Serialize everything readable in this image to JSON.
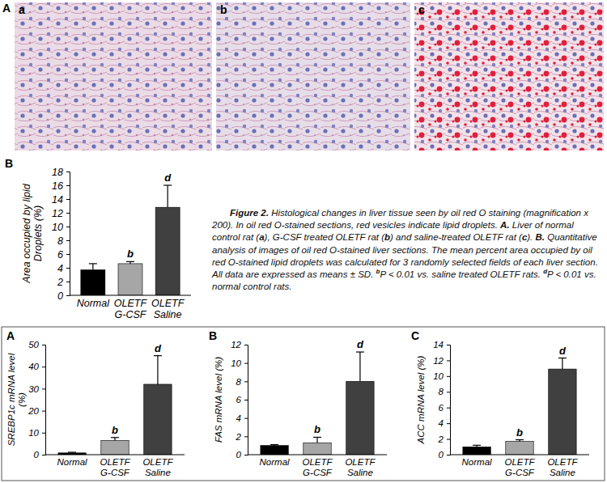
{
  "images": {
    "panel": "A",
    "labels": [
      "a",
      "b",
      "c"
    ]
  },
  "chart_data": [
    {
      "type": "bar",
      "panel": "B",
      "y_label": "Area occupied by lipid Droplets (%)",
      "categories": [
        "Normal",
        "OLETF G-CSF",
        "OLETF Saline"
      ],
      "values": [
        3.7,
        4.6,
        12.8
      ],
      "errors": [
        0.9,
        0.3,
        3.2
      ],
      "annotations": [
        null,
        "b",
        "d"
      ],
      "colors": [
        "#000000",
        "#a6a6a6",
        "#404040"
      ],
      "ylim": [
        0,
        18
      ],
      "yticks": [
        0,
        2,
        4,
        6,
        8,
        10,
        12,
        14,
        16,
        18
      ]
    },
    {
      "type": "bar",
      "panel": "A",
      "y_label": "SREBP1c mRNA level (%)",
      "categories": [
        "Normal",
        "OLETF G-CSF",
        "OLETF Saline"
      ],
      "values": [
        0.8,
        6.5,
        32
      ],
      "errors": [
        0.3,
        1.3,
        13
      ],
      "annotations": [
        null,
        "b",
        "d"
      ],
      "colors": [
        "#000000",
        "#a6a6a6",
        "#404040"
      ],
      "ylim": [
        0,
        50
      ],
      "yticks": [
        0,
        10,
        20,
        30,
        40,
        50
      ]
    },
    {
      "type": "bar",
      "panel": "B",
      "y_label": "FAS mRNA level (%)",
      "categories": [
        "Normal",
        "OLETF G-CSF",
        "OLETF Saline"
      ],
      "values": [
        1.0,
        1.3,
        8.0
      ],
      "errors": [
        0.1,
        0.6,
        3.2
      ],
      "annotations": [
        null,
        "b",
        "d"
      ],
      "colors": [
        "#000000",
        "#a6a6a6",
        "#404040"
      ],
      "ylim": [
        0,
        12
      ],
      "yticks": [
        0,
        2,
        4,
        6,
        8,
        10,
        12
      ]
    },
    {
      "type": "bar",
      "panel": "C",
      "y_label": "ACC mRNA level (%)",
      "categories": [
        "Normal",
        "OLETF G-CSF",
        "OLETF Saline"
      ],
      "values": [
        1.0,
        1.7,
        10.9
      ],
      "errors": [
        0.2,
        0.2,
        1.4
      ],
      "annotations": [
        null,
        "b",
        "d"
      ],
      "colors": [
        "#000000",
        "#a6a6a6",
        "#404040"
      ],
      "ylim": [
        0,
        14
      ],
      "yticks": [
        0,
        2,
        4,
        6,
        8,
        10,
        12,
        14
      ]
    }
  ],
  "caption": [
    {
      "text": "Figure 2.",
      "weight": "bold"
    },
    {
      "text": " Histological changes in liver tissue seen by oil red O staining (magnification x 200). In oil red O-stained sections, red vesicles indicate lipid droplets. "
    },
    {
      "text": "A.",
      "weight": "bold"
    },
    {
      "text": " Liver of normal control rat ("
    },
    {
      "text": "a",
      "weight": "bold"
    },
    {
      "text": "), G-CSF treated OLETF rat ("
    },
    {
      "text": "b",
      "weight": "bold"
    },
    {
      "text": ") and saline-treated OLETF rat ("
    },
    {
      "text": "c",
      "weight": "bold"
    },
    {
      "text": "). "
    },
    {
      "text": "B.",
      "weight": "bold"
    },
    {
      "text": " Quantitative analysis of images of oil red O-stained liver sections. The mean percent area occupied by oil red O-stained lipid droplets was calculated for 3 randomly selected fields of each liver section. All data are expressed as means ± SD. "
    },
    {
      "text": "b",
      "weight": "bold",
      "sup": true
    },
    {
      "text": "P < 0.01 vs. saline treated OLETF rats. "
    },
    {
      "text": "d",
      "weight": "bold",
      "sup": true
    },
    {
      "text": "P < 0.01 vs. normal control rats."
    }
  ]
}
